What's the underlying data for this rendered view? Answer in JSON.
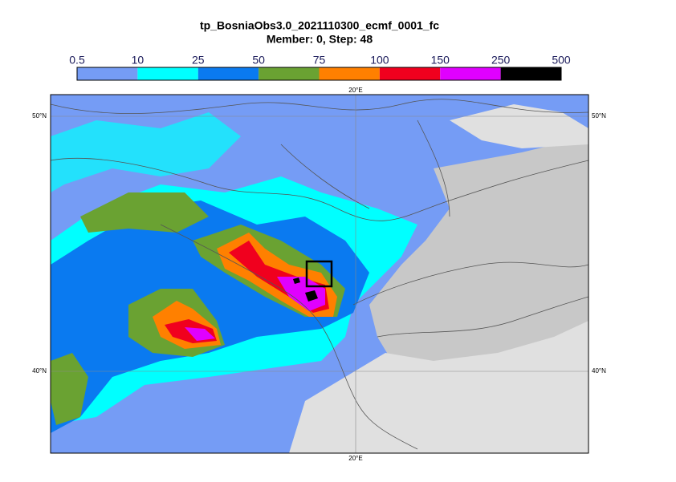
{
  "header": {
    "title": "tp_BosniaObs3.0_2021110300_ecmf_0001_fc",
    "subtitle": "Member: 0, Step: 48"
  },
  "legend": {
    "levels": [
      0.5,
      10,
      25,
      50,
      75,
      100,
      150,
      250,
      500
    ],
    "colors": [
      "#759cf5",
      "#00ffff",
      "#0a7af0",
      "#6aa232",
      "#ff8000",
      "#f0001e",
      "#e000ff",
      "#000000"
    ]
  },
  "map": {
    "lon_label": "20°E",
    "lat_labels": [
      "50°N",
      "40°N"
    ]
  }
}
